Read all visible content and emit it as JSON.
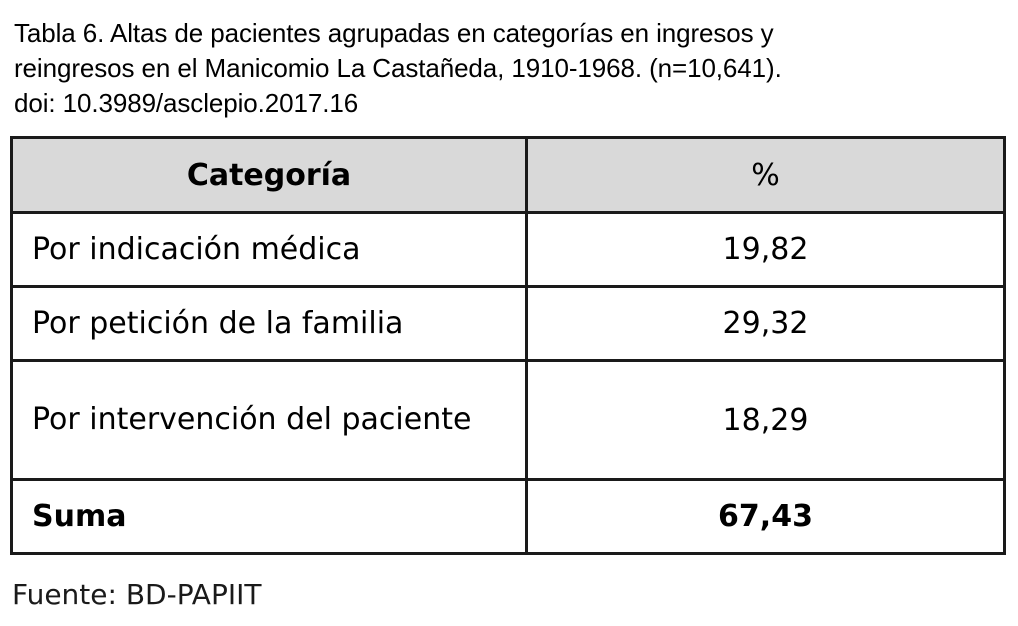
{
  "caption": {
    "line1": "Tabla 6. Altas de pacientes agrupadas en categorías en ingresos y",
    "line2": "reingresos en el Manicomio La Castañeda, 1910-1968. (n=10,641).",
    "line3": "doi: 10.3989/asclepio.2017.16"
  },
  "table": {
    "headers": [
      "Categoría",
      "%"
    ],
    "rows": [
      {
        "category": "Por indicación médica",
        "value": "19,82"
      },
      {
        "category": "Por petición de la familia",
        "value": "29,32"
      },
      {
        "category": "Por intervención del paciente",
        "value": "18,29"
      }
    ],
    "total": {
      "category": "Suma",
      "value": "67,43"
    }
  },
  "source": "Fuente: BD-PAPIIT"
}
